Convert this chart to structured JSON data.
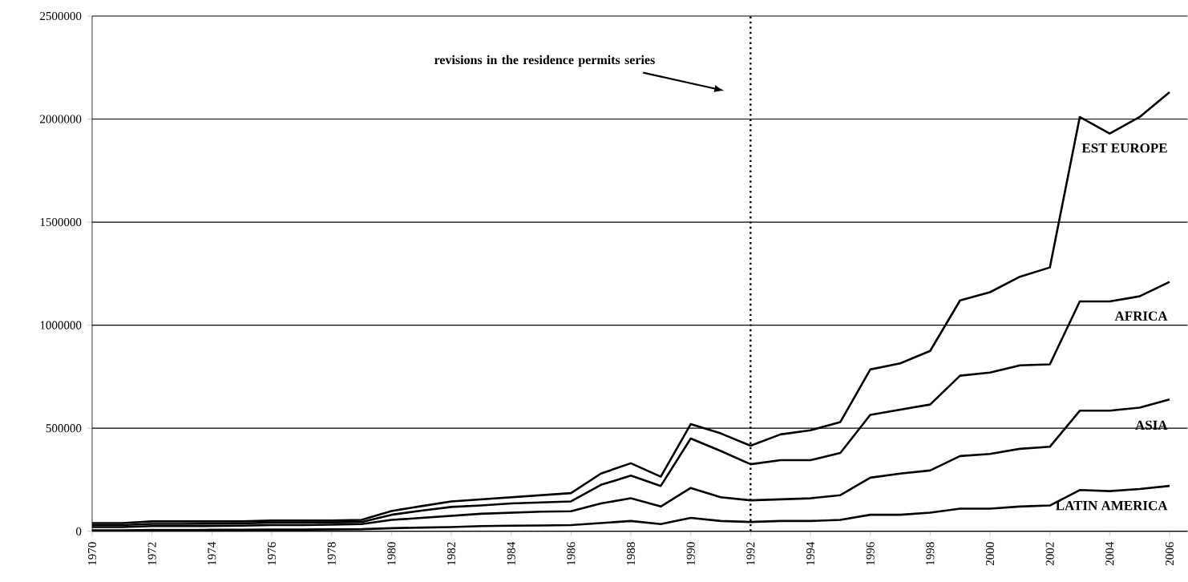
{
  "chart_data": {
    "type": "line",
    "x": [
      1970,
      1971,
      1972,
      1973,
      1974,
      1975,
      1976,
      1977,
      1978,
      1979,
      1980,
      1981,
      1982,
      1983,
      1984,
      1985,
      1986,
      1987,
      1988,
      1989,
      1990,
      1991,
      1992,
      1993,
      1994,
      1995,
      1996,
      1997,
      1998,
      1999,
      2000,
      2001,
      2002,
      2003,
      2004,
      2005,
      2006
    ],
    "xlim": [
      1970,
      2006.6
    ],
    "xticks": [
      1970,
      1972,
      1974,
      1976,
      1978,
      1980,
      1982,
      1984,
      1986,
      1988,
      1990,
      1992,
      1994,
      1996,
      1998,
      2000,
      2002,
      2004,
      2006
    ],
    "ylim": [
      0,
      2500000
    ],
    "yticks": [
      0,
      500000,
      1000000,
      1500000,
      2000000,
      2500000
    ],
    "grid": "y",
    "line_style": "solid",
    "series": [
      {
        "name": "LATIN AMERICA",
        "color": "#000000",
        "values": [
          5000,
          5000,
          6000,
          6000,
          7000,
          7000,
          8000,
          8000,
          9000,
          10000,
          15000,
          18000,
          20000,
          25000,
          27000,
          28000,
          30000,
          40000,
          50000,
          35000,
          65000,
          50000,
          45000,
          50000,
          50000,
          55000,
          80000,
          80000,
          90000,
          110000,
          110000,
          120000,
          125000,
          200000,
          195000,
          205000,
          220000
        ]
      },
      {
        "name": "ASIA",
        "color": "#000000",
        "values": [
          20000,
          20000,
          25000,
          25000,
          26000,
          27000,
          30000,
          30000,
          32000,
          35000,
          55000,
          65000,
          75000,
          85000,
          90000,
          95000,
          97000,
          135000,
          160000,
          120000,
          210000,
          165000,
          150000,
          155000,
          160000,
          175000,
          260000,
          280000,
          295000,
          365000,
          375000,
          400000,
          410000,
          585000,
          585000,
          600000,
          640000
        ]
      },
      {
        "name": "AFRICA",
        "color": "#000000",
        "values": [
          30000,
          30000,
          36000,
          36000,
          37000,
          38000,
          42000,
          42000,
          43000,
          45000,
          80000,
          100000,
          118000,
          125000,
          135000,
          140000,
          145000,
          225000,
          270000,
          220000,
          450000,
          390000,
          325000,
          345000,
          345000,
          380000,
          565000,
          590000,
          615000,
          755000,
          770000,
          805000,
          810000,
          1115000,
          1115000,
          1140000,
          1210000
        ]
      },
      {
        "name": "EST EUROPE",
        "color": "#000000",
        "values": [
          40000,
          40000,
          48000,
          48000,
          48000,
          48000,
          52000,
          52000,
          52000,
          55000,
          98000,
          122000,
          145000,
          155000,
          165000,
          175000,
          185000,
          280000,
          330000,
          265000,
          520000,
          475000,
          415000,
          470000,
          490000,
          530000,
          785000,
          815000,
          875000,
          1120000,
          1160000,
          1235000,
          1280000,
          2010000,
          1930000,
          2010000,
          2130000
        ]
      }
    ],
    "ref_lines": [
      {
        "axis": "x",
        "value": 1992,
        "line_style": "dotted",
        "color": "#000000"
      }
    ],
    "annotations": [
      "revisions in the residence permits series"
    ]
  }
}
